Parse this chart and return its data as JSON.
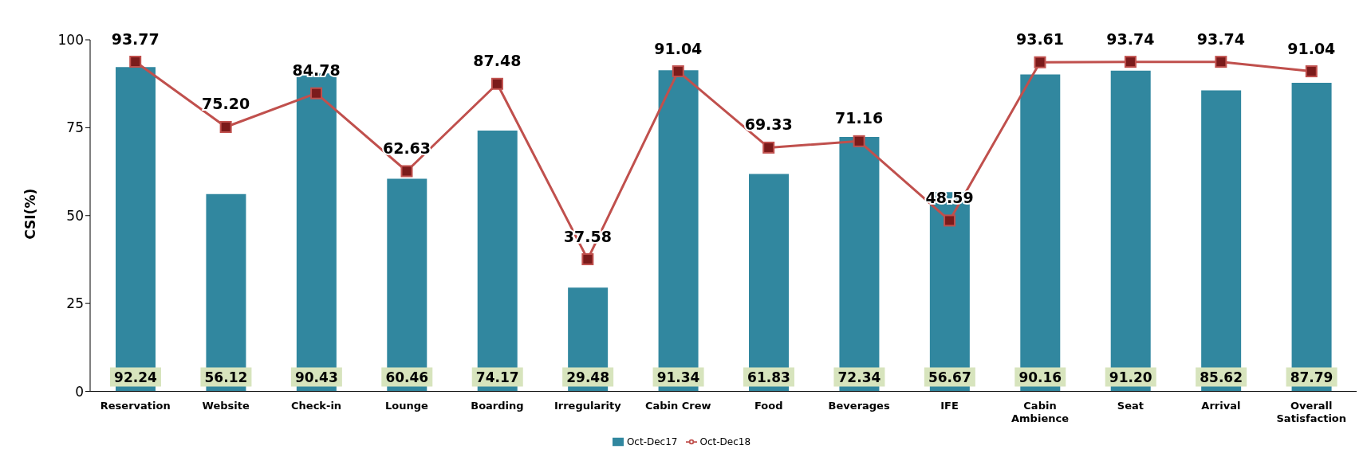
{
  "chart_data": {
    "type": "bar",
    "ylabel": "CSI(%)",
    "categories": [
      "Reservation",
      "Website",
      "Check-in",
      "Lounge",
      "Boarding",
      "Irregularity",
      "Cabin Crew",
      "Food",
      "Beverages",
      "IFE",
      "Cabin Ambience",
      "Seat",
      "Arrival",
      "Overall Satisfaction"
    ],
    "series": [
      {
        "name": "Oct-Dec17",
        "color": "#31879f",
        "values": [
          92.24,
          56.12,
          90.43,
          60.46,
          74.17,
          29.48,
          91.34,
          61.83,
          72.34,
          56.67,
          90.16,
          91.2,
          85.62,
          87.79
        ],
        "value_labels": [
          "92.24",
          "56.12",
          "90.43",
          "60.46",
          "74.17",
          "29.48",
          "91.34",
          "61.83",
          "72.34",
          "56.67",
          "90.16",
          "91.20",
          "85.62",
          "87.79"
        ]
      },
      {
        "name": "Oct-Dec18",
        "type": "line",
        "color": "#c0504d",
        "values": [
          93.77,
          75.2,
          84.78,
          62.63,
          87.48,
          37.58,
          91.04,
          69.33,
          71.16,
          48.59,
          93.61,
          93.74,
          93.74,
          91.04
        ],
        "value_labels": [
          "93.77",
          "75.20",
          "84.78",
          "62.63",
          "87.48",
          "37.58",
          "91.04",
          "69.33",
          "71.16",
          "48.59",
          "93.61",
          "93.74",
          "93.74",
          "91.04"
        ]
      }
    ],
    "ylim": [
      0,
      100
    ],
    "yticks": [
      0,
      25,
      50,
      75,
      100
    ],
    "grid": false,
    "legend": "bottom",
    "marker": "square",
    "line_style": "solid"
  }
}
